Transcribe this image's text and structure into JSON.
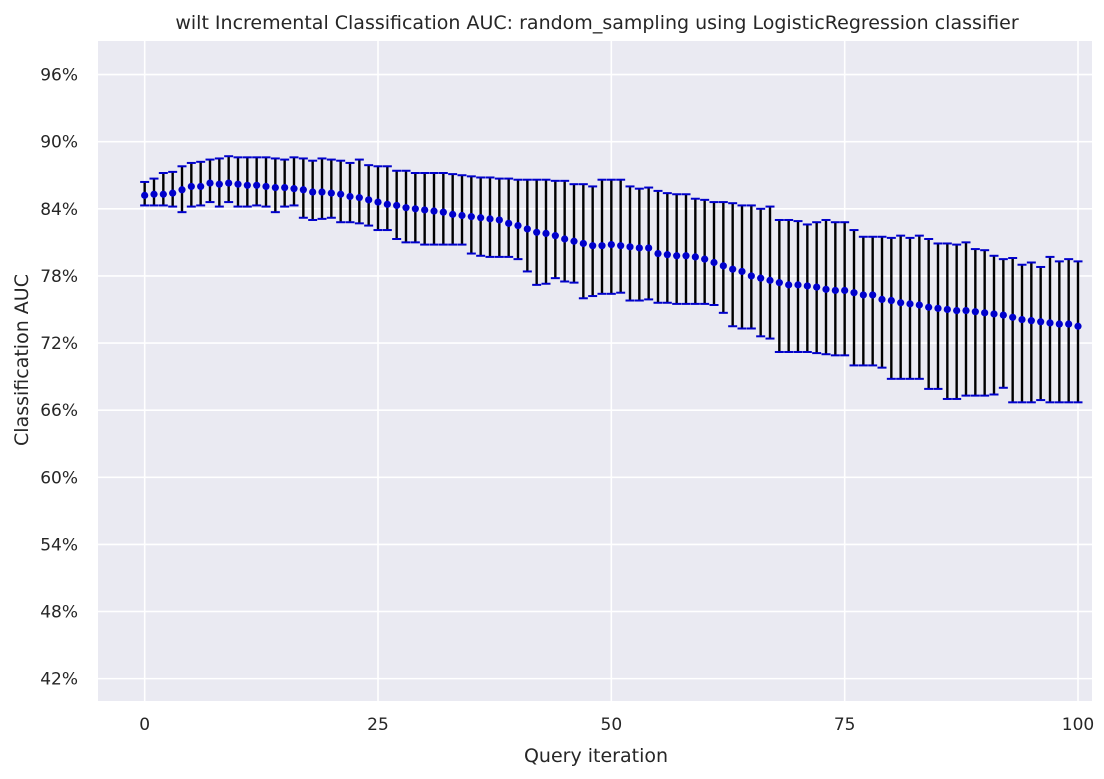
{
  "chart_data": {
    "type": "scatter",
    "title": "wilt Incremental Classification AUC: random_sampling using LogisticRegression classifier",
    "xlabel": "Query iteration",
    "ylabel": "Classification AUC",
    "xlim": [
      -5,
      101.5
    ],
    "ylim": [
      0.4,
      0.99
    ],
    "x_ticks": [
      0,
      25,
      50,
      75,
      100
    ],
    "y_ticks": [
      0.42,
      0.48,
      0.54,
      0.6,
      0.66,
      0.72,
      0.78,
      0.84,
      0.9,
      0.96
    ],
    "y_tick_labels": [
      "42%",
      "48%",
      "54%",
      "60%",
      "66%",
      "72%",
      "78%",
      "84%",
      "90%",
      "96%"
    ],
    "grid": true,
    "background_color": "#eaeaf2",
    "grid_color": "#ffffff",
    "marker_color": "#0000cc",
    "errorbar_color": "#000000",
    "cap_color": "#0000cc",
    "series": [
      {
        "x": [
          0,
          1,
          2,
          3,
          4,
          5,
          6,
          7,
          8,
          9,
          10,
          11,
          12,
          13,
          14,
          15,
          16,
          17,
          18,
          19,
          20,
          21,
          22,
          23,
          24,
          25,
          26,
          27,
          28,
          29,
          30,
          31,
          32,
          33,
          34,
          35,
          36,
          37,
          38,
          39,
          40,
          41,
          42,
          43,
          44,
          45,
          46,
          47,
          48,
          49,
          50,
          51,
          52,
          53,
          54,
          55,
          56,
          57,
          58,
          59,
          60,
          61,
          62,
          63,
          64,
          65,
          66,
          67,
          68,
          69,
          70,
          71,
          72,
          73,
          74,
          75,
          76,
          77,
          78,
          79,
          80,
          81,
          82,
          83,
          84,
          85,
          86,
          87,
          88,
          89,
          90,
          91,
          92,
          93,
          94,
          95,
          96,
          97,
          98,
          99,
          100
        ],
        "y": [
          0.852,
          0.853,
          0.853,
          0.854,
          0.857,
          0.86,
          0.86,
          0.863,
          0.862,
          0.863,
          0.862,
          0.861,
          0.861,
          0.86,
          0.859,
          0.859,
          0.858,
          0.857,
          0.855,
          0.855,
          0.854,
          0.853,
          0.851,
          0.85,
          0.848,
          0.846,
          0.844,
          0.843,
          0.841,
          0.84,
          0.839,
          0.838,
          0.837,
          0.835,
          0.834,
          0.833,
          0.832,
          0.831,
          0.83,
          0.827,
          0.825,
          0.822,
          0.819,
          0.818,
          0.816,
          0.813,
          0.811,
          0.809,
          0.807,
          0.807,
          0.808,
          0.807,
          0.806,
          0.805,
          0.805,
          0.8,
          0.799,
          0.798,
          0.798,
          0.797,
          0.795,
          0.792,
          0.789,
          0.786,
          0.784,
          0.78,
          0.778,
          0.776,
          0.774,
          0.772,
          0.772,
          0.771,
          0.77,
          0.768,
          0.767,
          0.767,
          0.765,
          0.763,
          0.763,
          0.759,
          0.758,
          0.756,
          0.755,
          0.754,
          0.752,
          0.751,
          0.75,
          0.749,
          0.749,
          0.748,
          0.747,
          0.746,
          0.745,
          0.743,
          0.741,
          0.74,
          0.739,
          0.738,
          0.737,
          0.737,
          0.735
        ],
        "y_upper": [
          0.864,
          0.867,
          0.872,
          0.873,
          0.878,
          0.881,
          0.882,
          0.884,
          0.885,
          0.887,
          0.886,
          0.886,
          0.886,
          0.886,
          0.885,
          0.884,
          0.886,
          0.885,
          0.883,
          0.885,
          0.884,
          0.883,
          0.881,
          0.884,
          0.879,
          0.878,
          0.878,
          0.874,
          0.874,
          0.872,
          0.872,
          0.872,
          0.872,
          0.871,
          0.87,
          0.869,
          0.868,
          0.868,
          0.867,
          0.867,
          0.866,
          0.866,
          0.866,
          0.866,
          0.865,
          0.865,
          0.862,
          0.862,
          0.86,
          0.866,
          0.866,
          0.866,
          0.86,
          0.858,
          0.859,
          0.856,
          0.854,
          0.853,
          0.853,
          0.849,
          0.848,
          0.846,
          0.846,
          0.845,
          0.843,
          0.843,
          0.84,
          0.842,
          0.83,
          0.83,
          0.829,
          0.826,
          0.828,
          0.83,
          0.828,
          0.828,
          0.821,
          0.815,
          0.815,
          0.815,
          0.814,
          0.816,
          0.814,
          0.816,
          0.813,
          0.809,
          0.809,
          0.808,
          0.81,
          0.804,
          0.803,
          0.798,
          0.795,
          0.796,
          0.79,
          0.792,
          0.788,
          0.797,
          0.793,
          0.795,
          0.793
        ],
        "y_lower": [
          0.843,
          0.843,
          0.843,
          0.842,
          0.837,
          0.842,
          0.843,
          0.846,
          0.842,
          0.846,
          0.842,
          0.842,
          0.843,
          0.842,
          0.837,
          0.842,
          0.843,
          0.832,
          0.83,
          0.831,
          0.832,
          0.828,
          0.828,
          0.827,
          0.825,
          0.821,
          0.821,
          0.813,
          0.81,
          0.81,
          0.808,
          0.808,
          0.808,
          0.808,
          0.808,
          0.8,
          0.798,
          0.797,
          0.797,
          0.797,
          0.795,
          0.784,
          0.772,
          0.773,
          0.778,
          0.775,
          0.774,
          0.76,
          0.762,
          0.764,
          0.764,
          0.765,
          0.758,
          0.758,
          0.759,
          0.756,
          0.756,
          0.755,
          0.755,
          0.755,
          0.755,
          0.754,
          0.747,
          0.735,
          0.733,
          0.733,
          0.726,
          0.724,
          0.712,
          0.712,
          0.712,
          0.712,
          0.711,
          0.71,
          0.709,
          0.709,
          0.7,
          0.7,
          0.7,
          0.698,
          0.688,
          0.688,
          0.688,
          0.688,
          0.679,
          0.679,
          0.67,
          0.67,
          0.673,
          0.673,
          0.673,
          0.674,
          0.68,
          0.667,
          0.667,
          0.667,
          0.669,
          0.667,
          0.667,
          0.667,
          0.667
        ]
      }
    ]
  }
}
